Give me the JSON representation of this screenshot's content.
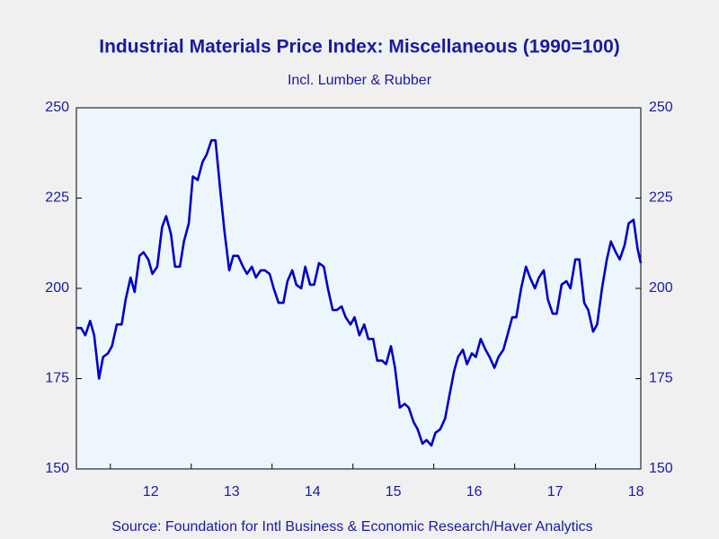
{
  "chart_data": {
    "type": "line",
    "title": "Industrial Materials Price Index: Miscellaneous (1990=100)",
    "subtitle": "Incl. Lumber & Rubber",
    "source": "Source:  Foundation for Intl Business & Economic Research/Haver Analytics",
    "x": [
      2011.58,
      2011.64,
      2011.69,
      2011.75,
      2011.8,
      2011.86,
      2011.91,
      2011.97,
      2012.02,
      2012.08,
      2012.14,
      2012.19,
      2012.25,
      2012.3,
      2012.36,
      2012.41,
      2012.47,
      2012.52,
      2012.58,
      2012.64,
      2012.69,
      2012.75,
      2012.8,
      2012.86,
      2012.91,
      2012.97,
      2013.02,
      2013.08,
      2013.14,
      2013.19,
      2013.25,
      2013.3,
      2013.36,
      2013.41,
      2013.47,
      2013.52,
      2013.58,
      2013.64,
      2013.69,
      2013.75,
      2013.8,
      2013.86,
      2013.91,
      2013.97,
      2014.02,
      2014.08,
      2014.14,
      2014.19,
      2014.25,
      2014.3,
      2014.36,
      2014.41,
      2014.47,
      2014.52,
      2014.58,
      2014.64,
      2014.69,
      2014.75,
      2014.8,
      2014.86,
      2014.91,
      2014.97,
      2015.02,
      2015.08,
      2015.14,
      2015.19,
      2015.25,
      2015.3,
      2015.36,
      2015.41,
      2015.47,
      2015.52,
      2015.58,
      2015.64,
      2015.69,
      2015.75,
      2015.8,
      2015.86,
      2015.91,
      2015.97,
      2016.02,
      2016.08,
      2016.14,
      2016.19,
      2016.25,
      2016.3,
      2016.36,
      2016.41,
      2016.47,
      2016.52,
      2016.58,
      2016.64,
      2016.69,
      2016.75,
      2016.8,
      2016.86,
      2016.91,
      2016.97,
      2017.02,
      2017.08,
      2017.14,
      2017.19,
      2017.25,
      2017.3,
      2017.36,
      2017.41,
      2017.47,
      2017.52,
      2017.58,
      2017.64,
      2017.69,
      2017.75,
      2017.8,
      2017.86,
      2017.91,
      2017.97,
      2018.02,
      2018.08,
      2018.14,
      2018.19,
      2018.25,
      2018.3,
      2018.36,
      2018.41,
      2018.47,
      2018.52,
      2018.56
    ],
    "series": [
      {
        "color": "#0000c8",
        "values": [
          189,
          189,
          187,
          191,
          187,
          175,
          181,
          182,
          184,
          190,
          190,
          197,
          203,
          199,
          209,
          210,
          208,
          204,
          206,
          217,
          220,
          215,
          206,
          206,
          213,
          218,
          231,
          230,
          235,
          237,
          241,
          241,
          227,
          216,
          205,
          209,
          209,
          206,
          204,
          206,
          203,
          205,
          205,
          204,
          200,
          196,
          196,
          202,
          205,
          201,
          200,
          206,
          201,
          201,
          207,
          206,
          200,
          194,
          194,
          195,
          192,
          190,
          192,
          187,
          190,
          186,
          186,
          180,
          180,
          179,
          184,
          178,
          167,
          168,
          167,
          163,
          161,
          157,
          158,
          156.5,
          160,
          161,
          164,
          170,
          177,
          181,
          183,
          179,
          182,
          181,
          186,
          183,
          181,
          178,
          181,
          183,
          187,
          192,
          192,
          200,
          206,
          203,
          200,
          203,
          205,
          197,
          193,
          193,
          201,
          202,
          200,
          208,
          208,
          196,
          194,
          188,
          190,
          200,
          208,
          213,
          210,
          208,
          212,
          218,
          219,
          211,
          207
        ]
      }
    ],
    "xlim": [
      2011.58,
      2018.56
    ],
    "xticks": [
      {
        "value": 2012.5,
        "label": "12"
      },
      {
        "value": 2013.5,
        "label": "13"
      },
      {
        "value": 2014.5,
        "label": "14"
      },
      {
        "value": 2015.5,
        "label": "15"
      },
      {
        "value": 2016.5,
        "label": "16"
      },
      {
        "value": 2017.5,
        "label": "17"
      },
      {
        "value": 2018.5,
        "label": "18"
      }
    ],
    "xtick_marks": [
      2012,
      2013,
      2014,
      2015,
      2016,
      2017,
      2018
    ],
    "ylim": [
      150,
      250
    ],
    "yticks": [
      150,
      175,
      200,
      225,
      250
    ],
    "y2lim": [
      150,
      250
    ],
    "y2ticks": [
      150,
      175,
      200,
      225,
      250
    ]
  }
}
